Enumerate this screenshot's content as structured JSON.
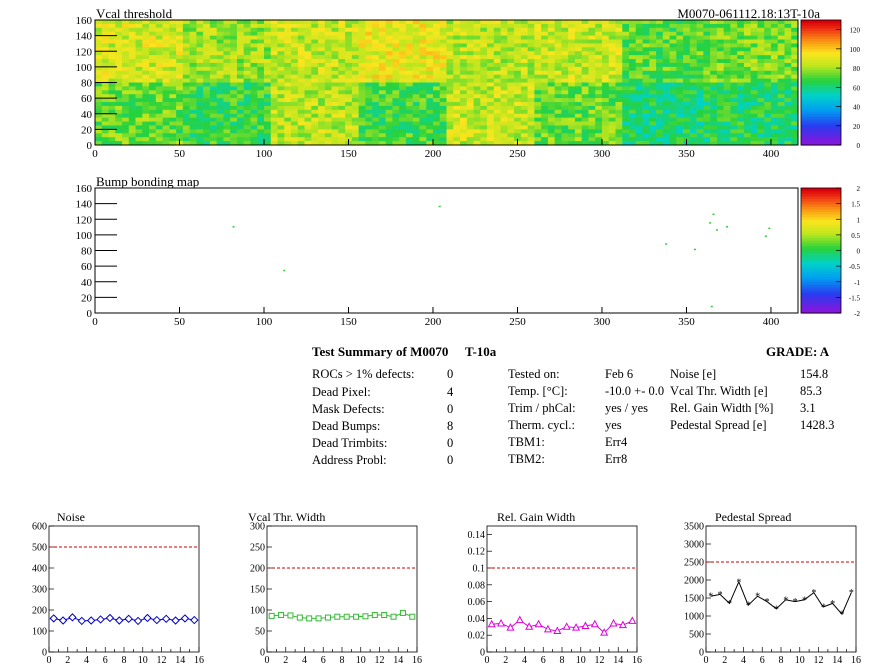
{
  "heatmap": {
    "title": "Vcal threshold",
    "id_label": "M0070-061112.18:13T-10a",
    "x_ticks": [
      0,
      50,
      100,
      150,
      200,
      250,
      300,
      350,
      400
    ],
    "y_ticks": [
      0,
      20,
      40,
      60,
      80,
      100,
      120,
      140,
      160
    ],
    "palette_ticks": [
      0,
      20,
      40,
      60,
      80,
      100,
      120
    ]
  },
  "bumpmap": {
    "title": "Bump bonding map",
    "x_ticks": [
      0,
      50,
      100,
      150,
      200,
      250,
      300,
      350,
      400
    ],
    "y_ticks": [
      0,
      20,
      40,
      60,
      80,
      100,
      120,
      140,
      160
    ],
    "palette_ticks": [
      "-2",
      "-1.5",
      "-1",
      "-0.5",
      "0",
      "0.5",
      "1",
      "1.5",
      "2"
    ]
  },
  "summary": {
    "title": "Test Summary of M0070",
    "test": "T-10a",
    "grade": "GRADE:  A",
    "defects": [
      {
        "label": "ROCs > 1% defects:",
        "value": "0"
      },
      {
        "label": "Dead Pixel:",
        "value": "4"
      },
      {
        "label": "Mask Defects:",
        "value": "0"
      },
      {
        "label": "Dead Bumps:",
        "value": "8"
      },
      {
        "label": "Dead Trimbits:",
        "value": "0"
      },
      {
        "label": "Address Probl:",
        "value": "0"
      }
    ],
    "conditions": [
      {
        "label": "Tested on:",
        "value": "Feb 6"
      },
      {
        "label": "Temp. [°C]:",
        "value": "-10.0 +- 0.0"
      },
      {
        "label": "Trim / phCal:",
        "value": "yes / yes"
      },
      {
        "label": "Therm. cycl.:",
        "value": "yes"
      },
      {
        "label": "TBM1:",
        "value": "Err4"
      },
      {
        "label": "TBM2:",
        "value": "Err8"
      }
    ],
    "results": [
      {
        "label": "Noise [e]",
        "value": "154.8"
      },
      {
        "label": "Vcal Thr. Width [e]",
        "value": "85.3"
      },
      {
        "label": "Rel. Gain Width [%]",
        "value": "3.1"
      },
      {
        "label": "Pedestal Spread [e]",
        "value": "1428.3"
      }
    ]
  },
  "chart_data": [
    {
      "type": "heatmap",
      "title": "Vcal threshold",
      "xlim": [
        0,
        416
      ],
      "ylim": [
        0,
        160
      ],
      "zlim": [
        0,
        130
      ],
      "roc_grid": {
        "cols": 8,
        "rows": 2,
        "roc_width": 52,
        "roc_height": 80
      },
      "roc_mean_values": [
        [
          88,
          80,
          86,
          92,
          84,
          86,
          72,
          76
        ],
        [
          74,
          68,
          84,
          70,
          86,
          74,
          62,
          64
        ]
      ],
      "roc_mean_rows_note": "row 0 = y 80-160, row 1 = y 0-80"
    },
    {
      "type": "scatter",
      "title": "Bump bonding map",
      "xlim": [
        0,
        416
      ],
      "ylim": [
        0,
        160
      ],
      "zlim": [
        -2,
        2
      ],
      "points": [
        {
          "x": 82,
          "y": 110
        },
        {
          "x": 112,
          "y": 54
        },
        {
          "x": 204,
          "y": 136
        },
        {
          "x": 338,
          "y": 88
        },
        {
          "x": 355,
          "y": 81
        },
        {
          "x": 364,
          "y": 115
        },
        {
          "x": 366,
          "y": 126
        },
        {
          "x": 368,
          "y": 106
        },
        {
          "x": 374,
          "y": 110
        },
        {
          "x": 397,
          "y": 98
        },
        {
          "x": 399,
          "y": 108
        },
        {
          "x": 365,
          "y": 8
        }
      ]
    },
    {
      "type": "line",
      "title": "Noise",
      "color": "#0000cc",
      "marker": "diamond",
      "xlim": [
        0,
        16
      ],
      "ylim": [
        0,
        600
      ],
      "limit": 500,
      "y_ticks": [
        0,
        100,
        200,
        300,
        400,
        500,
        600
      ],
      "x": [
        0,
        1,
        2,
        3,
        4,
        5,
        6,
        7,
        8,
        9,
        10,
        11,
        12,
        13,
        14,
        15
      ],
      "values": [
        160,
        150,
        165,
        148,
        150,
        155,
        162,
        150,
        158,
        148,
        162,
        152,
        158,
        150,
        160,
        152
      ]
    },
    {
      "type": "line",
      "title": "Vcal Thr. Width",
      "color": "#33bb33",
      "marker": "square",
      "xlim": [
        0,
        16
      ],
      "ylim": [
        0,
        300
      ],
      "limit": 200,
      "y_ticks": [
        0,
        50,
        100,
        150,
        200,
        250,
        300
      ],
      "x": [
        0,
        1,
        2,
        3,
        4,
        5,
        6,
        7,
        8,
        9,
        10,
        11,
        12,
        13,
        14,
        15
      ],
      "values": [
        86,
        88,
        87,
        82,
        80,
        80,
        82,
        84,
        84,
        84,
        85,
        88,
        88,
        84,
        93,
        84
      ]
    },
    {
      "type": "line",
      "title": "Rel. Gain Width",
      "color": "#dd00dd",
      "marker": "triangle",
      "xlim": [
        0,
        16
      ],
      "ylim": [
        0,
        0.15
      ],
      "limit": 0.1,
      "y_ticks": [
        0,
        0.02,
        0.04,
        0.06,
        0.08,
        0.1,
        0.12,
        0.14
      ],
      "x": [
        0,
        1,
        2,
        3,
        4,
        5,
        6,
        7,
        8,
        9,
        10,
        11,
        12,
        13,
        14,
        15
      ],
      "values": [
        0.033,
        0.034,
        0.029,
        0.038,
        0.03,
        0.033,
        0.027,
        0.025,
        0.03,
        0.029,
        0.031,
        0.033,
        0.023,
        0.034,
        0.032,
        0.037
      ]
    },
    {
      "type": "line",
      "title": "Pedestal Spread",
      "color": "#000000",
      "marker": "star",
      "xlim": [
        0,
        16
      ],
      "ylim": [
        0,
        3500
      ],
      "limit": 2500,
      "y_ticks": [
        0,
        500,
        1000,
        1500,
        2000,
        2500,
        3000,
        3500
      ],
      "x": [
        0,
        1,
        2,
        3,
        4,
        5,
        6,
        7,
        8,
        9,
        10,
        11,
        12,
        13,
        14,
        15
      ],
      "values": [
        1550,
        1600,
        1350,
        1950,
        1300,
        1550,
        1400,
        1200,
        1450,
        1400,
        1450,
        1650,
        1250,
        1350,
        1050,
        1650
      ]
    }
  ]
}
